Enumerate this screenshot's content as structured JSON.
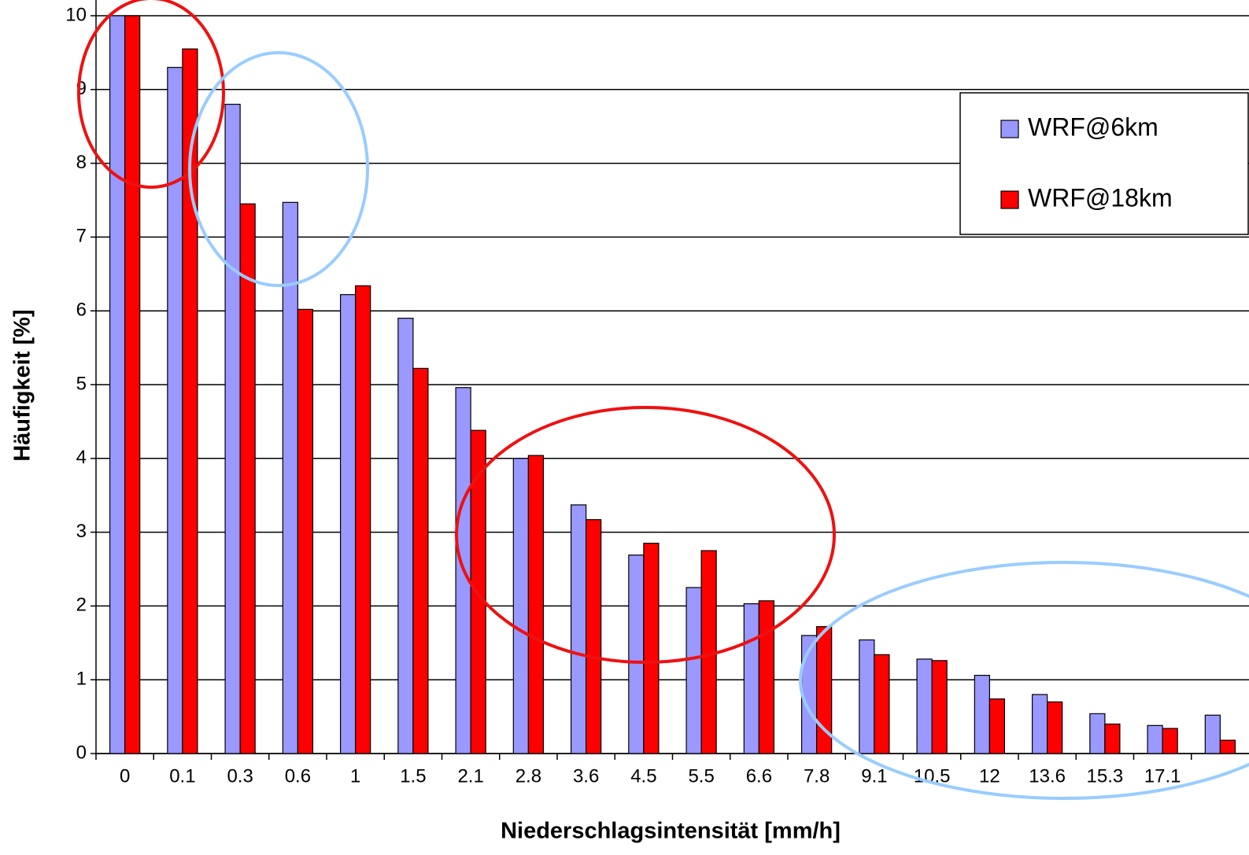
{
  "chart_data": {
    "type": "bar",
    "x_label": "Niederschlagsintensität [mm/h]",
    "y_label": "Häufigkeit [%]",
    "categories": [
      "0",
      "0.1",
      "0.3",
      "0.6",
      "1",
      "1.5",
      "2.1",
      "2.8",
      "3.6",
      "4.5",
      "5.5",
      "6.6",
      "7.8",
      "9.1",
      "10.5",
      "12",
      "13.6",
      "15.3",
      "17.1",
      null
    ],
    "series": [
      {
        "name": "WRF@6km",
        "color": "#9999ff",
        "values": [
          10,
          9.3,
          8.8,
          7.47,
          6.22,
          5.9,
          4.96,
          4.0,
          3.37,
          2.69,
          2.25,
          2.03,
          1.6,
          1.54,
          1.28,
          1.06,
          0.8,
          0.54,
          0.38,
          0.52
        ]
      },
      {
        "name": "WRF@18km",
        "color": "#ff0000",
        "values": [
          10,
          9.55,
          7.45,
          6.02,
          6.34,
          5.22,
          4.38,
          4.04,
          3.17,
          2.85,
          2.75,
          2.07,
          1.72,
          1.34,
          1.26,
          0.74,
          0.7,
          0.4,
          0.34,
          0.18
        ]
      }
    ],
    "ylim": [
      0,
      10
    ],
    "yticks": [
      0,
      1,
      2,
      3,
      4,
      5,
      6,
      7,
      8,
      9,
      10
    ],
    "grid": true
  }
}
